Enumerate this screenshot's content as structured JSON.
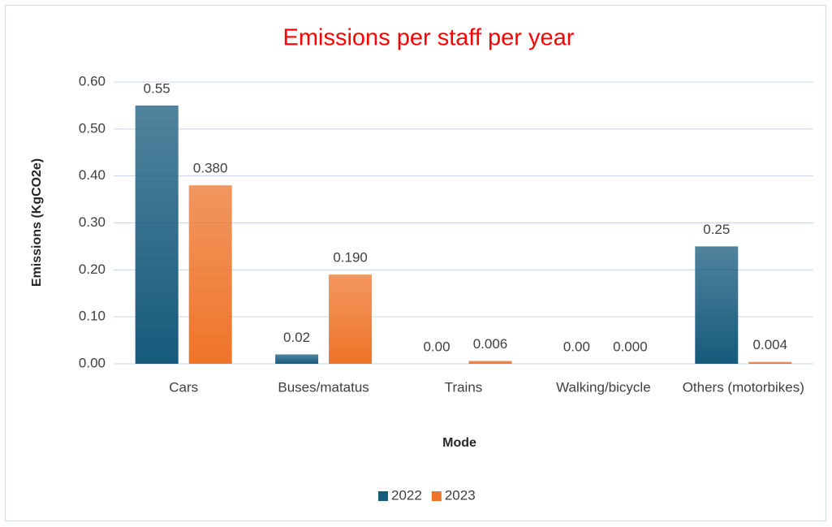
{
  "chart_data": {
    "type": "bar",
    "title": "Emissions per staff per year",
    "xlabel": "Mode",
    "ylabel": "Emissions (KgCO2e)",
    "categories": [
      "Cars",
      "Buses/matatus",
      "Trains",
      "Walking/bicycle",
      "Others (motorbikes)"
    ],
    "series": [
      {
        "name": "2022",
        "color": "#165a7c",
        "values": [
          0.55,
          0.02,
          0,
          0,
          0.25
        ],
        "value_labels": [
          "0.55",
          "0.02",
          "0.00",
          "0.00",
          "0.25"
        ]
      },
      {
        "name": "2023",
        "color": "#ee7429",
        "values": [
          0.38,
          0.19,
          0.006,
          0,
          0.004
        ],
        "value_labels": [
          "0.380",
          "0.190",
          "0.006",
          "0.000",
          "0.004"
        ]
      }
    ],
    "ylim": [
      0,
      0.6
    ],
    "yticks": [
      {
        "value": 0,
        "label": "0.00"
      },
      {
        "value": 0.1,
        "label": "0.10"
      },
      {
        "value": 0.2,
        "label": "0.20"
      },
      {
        "value": 0.3,
        "label": "0.30"
      },
      {
        "value": 0.4,
        "label": "0.40"
      },
      {
        "value": 0.5,
        "label": "0.50"
      },
      {
        "value": 0.6,
        "label": "0.60"
      }
    ],
    "grid": true,
    "legend": "bottom"
  }
}
